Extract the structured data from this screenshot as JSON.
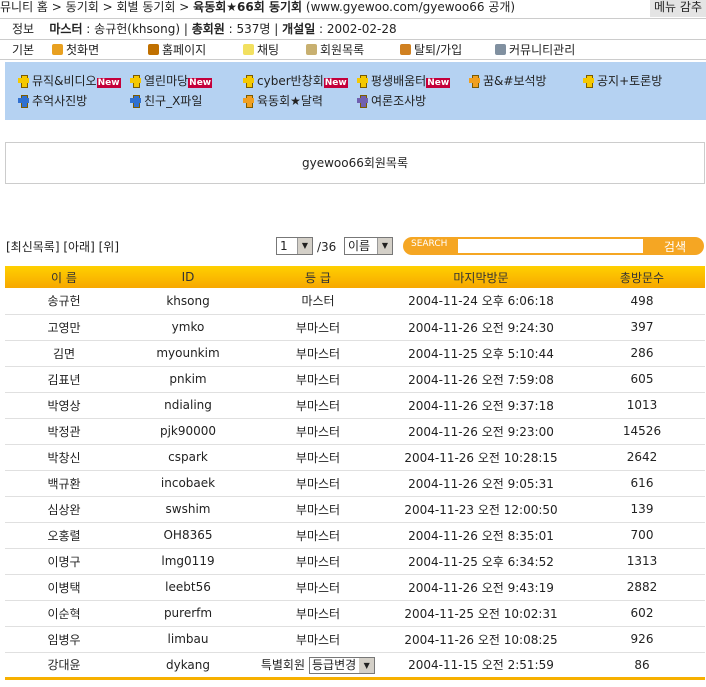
{
  "breadcrumb": {
    "path": "뮤니티 홈 > 동기회 > 회별 동기회 > ",
    "current": "육동회★66회 동기회",
    "url": "(www.gyewoo.com/gyewoo66 공개)",
    "menu": "메뉴 감추"
  },
  "info": {
    "label": "정보",
    "master_label": "마스터",
    "master": "송규헌(khsong)",
    "members_label": "총회원",
    "members": "537명",
    "founded_label": "개설일",
    "founded": "2002-02-28"
  },
  "basic": {
    "label": "기본",
    "items": [
      "첫화면",
      "홈페이지",
      "채팅",
      "회원목록",
      "탈퇴/가입",
      "커뮤니티관리"
    ]
  },
  "boards": [
    {
      "label": "뮤직&비디오",
      "new": "New"
    },
    {
      "label": "열린마당",
      "new": "New"
    },
    {
      "label": "cyber반창회",
      "new": "New"
    },
    {
      "label": "평생배움터",
      "new": "New"
    },
    {
      "label": "꿈&#보석방"
    },
    {
      "label": "공지+토론방"
    },
    {
      "label": "추억사진방"
    },
    {
      "label": "친구_X파일"
    },
    {
      "label": "육동회★달력"
    },
    {
      "label": "여론조사방"
    }
  ],
  "title_box": "gyewoo66회원목록",
  "nav_links": "[최신목록] [아래] [위]",
  "pager": {
    "page": "1",
    "total": "/36",
    "field": "이름"
  },
  "search": {
    "label": "SEARCH",
    "value": "",
    "button": "검색"
  },
  "table": {
    "headers": [
      "이 름",
      "ID",
      "등 급",
      "마지막방문",
      "총방문수"
    ],
    "rows": [
      [
        "송규헌",
        "khsong",
        "마스터",
        "2004-11-24 오후 6:06:18",
        "498"
      ],
      [
        "고영만",
        "ymko",
        "부마스터",
        "2004-11-26 오전 9:24:30",
        "397"
      ],
      [
        "김면",
        "myounkim",
        "부마스터",
        "2004-11-25 오후 5:10:44",
        "286"
      ],
      [
        "김표년",
        "pnkim",
        "부마스터",
        "2004-11-26 오전 7:59:08",
        "605"
      ],
      [
        "박영상",
        "ndialing",
        "부마스터",
        "2004-11-26 오전 9:37:18",
        "1013"
      ],
      [
        "박정관",
        "pjk90000",
        "부마스터",
        "2004-11-26 오전 9:23:00",
        "14526"
      ],
      [
        "박창신",
        "cspark",
        "부마스터",
        "2004-11-26 오전 10:28:15",
        "2642"
      ],
      [
        "백규환",
        "incobaek",
        "부마스터",
        "2004-11-26 오전 9:05:31",
        "616"
      ],
      [
        "심상완",
        "swshim",
        "부마스터",
        "2004-11-23 오전 12:00:50",
        "139"
      ],
      [
        "오홍렬",
        "OH8365",
        "부마스터",
        "2004-11-26 오전 8:35:01",
        "700"
      ],
      [
        "이명구",
        "lmg0119",
        "부마스터",
        "2004-11-25 오후 6:34:52",
        "1313"
      ],
      [
        "이병택",
        "leebt56",
        "부마스터",
        "2004-11-26 오전 9:43:19",
        "2882"
      ],
      [
        "이순혁",
        "purerfm",
        "부마스터",
        "2004-11-25 오전 10:02:31",
        "602"
      ],
      [
        "임병우",
        "limbau",
        "부마스터",
        "2004-11-26 오전 10:08:25",
        "926"
      ],
      [
        "강대윤",
        "dykang",
        "특별회원",
        "2004-11-15 오전 2:51:59",
        "86"
      ]
    ],
    "grade_change": "등급변경"
  }
}
